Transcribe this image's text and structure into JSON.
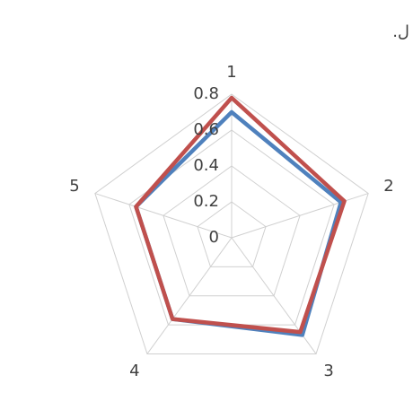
{
  "chart_data": {
    "type": "radar",
    "annotation": ".ل",
    "categories": [
      "1",
      "2",
      "3",
      "4",
      "5"
    ],
    "series": [
      {
        "color": "#4f81bd",
        "values": [
          0.7,
          0.64,
          0.67,
          0.56,
          0.56
        ]
      },
      {
        "color": "#c0504d",
        "values": [
          0.78,
          0.66,
          0.65,
          0.56,
          0.56
        ]
      }
    ],
    "ylim": [
      0,
      0.8
    ],
    "yticks": [
      0,
      0.2,
      0.4,
      0.6,
      0.8
    ],
    "grid": true
  }
}
